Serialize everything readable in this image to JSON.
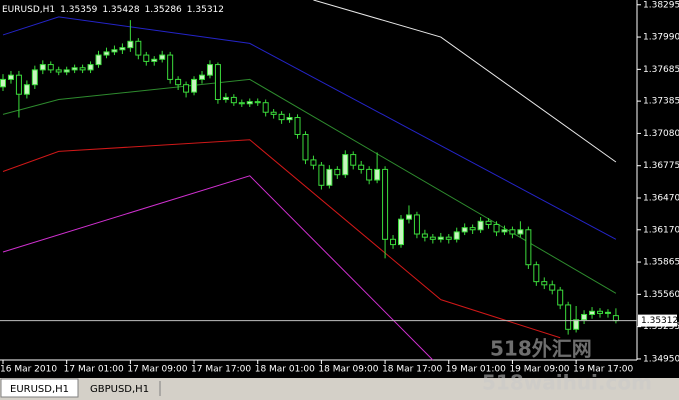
{
  "chart_data": {
    "type": "candlestick",
    "title": "EURUSD,H1",
    "categories": [
      "16 Mar 2010",
      null,
      null,
      null,
      null,
      null,
      null,
      null,
      "17 Mar 01:00",
      null,
      null,
      null,
      null,
      null,
      null,
      null,
      "17 Mar 09:00",
      null,
      null,
      null,
      null,
      null,
      null,
      null,
      "17 Mar 17:00",
      null,
      null,
      null,
      null,
      null,
      null,
      null,
      "18 Mar 01:00",
      null,
      null,
      null,
      null,
      null,
      null,
      null,
      "18 Mar 09:00",
      null,
      null,
      null,
      null,
      null,
      null,
      null,
      "18 Mar 17:00",
      null,
      null,
      null,
      null,
      null,
      null,
      null,
      "19 Mar 01:00",
      null,
      null,
      null,
      null,
      null,
      null,
      null,
      "19 Mar 09:00",
      null,
      null,
      null,
      null,
      null,
      null,
      null,
      "19 Mar 17:00",
      null,
      null,
      null,
      null,
      null
    ],
    "open": [
      1.3752,
      1.3759,
      1.3763,
      1.3745,
      1.3754,
      1.3768,
      1.3773,
      1.3768,
      1.3766,
      1.3768,
      1.377,
      1.3768,
      1.3773,
      1.3782,
      1.3785,
      1.3787,
      1.3789,
      1.3795,
      1.3782,
      1.3776,
      1.3778,
      1.3782,
      1.3759,
      1.3754,
      1.3747,
      1.3759,
      1.3763,
      1.3773,
      1.374,
      1.3742,
      1.3737,
      1.3736,
      1.3738,
      1.3737,
      1.3728,
      1.3726,
      1.3721,
      1.3723,
      1.3707,
      1.3683,
      1.3678,
      1.3659,
      1.3674,
      1.3669,
      1.3688,
      1.3678,
      1.3674,
      1.3664,
      1.3674,
      1.3608,
      1.3603,
      1.3627,
      1.3631,
      1.3613,
      1.361,
      1.3608,
      1.361,
      1.3608,
      1.3615,
      1.3619,
      1.3617,
      1.3625,
      1.3622,
      1.3615,
      1.3617,
      1.3613,
      1.3617,
      1.3584,
      1.3568,
      1.3565,
      1.356,
      1.3546,
      1.3523,
      1.3532,
      1.3537,
      1.354,
      1.3538,
      1.35359
    ],
    "high": [
      1.3764,
      1.3767,
      1.3767,
      1.3758,
      1.3772,
      1.3777,
      1.3776,
      1.3771,
      1.3771,
      1.3773,
      1.3773,
      1.3776,
      1.3786,
      1.3789,
      1.3791,
      1.3793,
      1.3815,
      1.3798,
      1.3785,
      1.3781,
      1.3786,
      1.3785,
      1.3762,
      1.3757,
      1.3762,
      1.3767,
      1.3777,
      1.3775,
      1.3746,
      1.3745,
      1.374,
      1.3741,
      1.3741,
      1.374,
      1.3731,
      1.3729,
      1.3727,
      1.3726,
      1.371,
      1.3687,
      1.3681,
      1.3678,
      1.3677,
      1.3692,
      1.3691,
      1.3682,
      1.3677,
      1.369,
      1.3677,
      1.3612,
      1.3631,
      1.364,
      1.3634,
      1.3617,
      1.3613,
      1.3614,
      1.3613,
      1.3619,
      1.3623,
      1.3622,
      1.3629,
      1.3628,
      1.3625,
      1.3621,
      1.362,
      1.3625,
      1.362,
      1.3587,
      1.3572,
      1.3569,
      1.3563,
      1.3549,
      1.3545,
      1.3541,
      1.3544,
      1.3543,
      1.3542,
      1.35428
    ],
    "low": [
      1.3748,
      1.3755,
      1.3723,
      1.3741,
      1.375,
      1.3764,
      1.3765,
      1.3763,
      1.3763,
      1.3765,
      1.3765,
      1.3765,
      1.377,
      1.3779,
      1.3782,
      1.3783,
      1.3785,
      1.3778,
      1.3772,
      1.3772,
      1.3775,
      1.3755,
      1.3749,
      1.3742,
      1.3744,
      1.3755,
      1.376,
      1.3736,
      1.3737,
      1.3734,
      1.3733,
      1.3733,
      1.3734,
      1.3724,
      1.3722,
      1.3717,
      1.3718,
      1.3703,
      1.3679,
      1.3674,
      1.3655,
      1.3656,
      1.3665,
      1.3666,
      1.3674,
      1.367,
      1.366,
      1.3661,
      1.359,
      1.3599,
      1.36,
      1.3623,
      1.3609,
      1.3606,
      1.3604,
      1.3605,
      1.3604,
      1.3605,
      1.3612,
      1.3613,
      1.3614,
      1.3618,
      1.3611,
      1.3612,
      1.3609,
      1.361,
      1.358,
      1.3564,
      1.3561,
      1.3556,
      1.3542,
      1.3518,
      1.352,
      1.3528,
      1.3533,
      1.3534,
      1.3534,
      1.35286
    ],
    "close": [
      1.3759,
      1.3763,
      1.3745,
      1.3754,
      1.3768,
      1.3773,
      1.3768,
      1.3766,
      1.3768,
      1.377,
      1.3768,
      1.3773,
      1.3782,
      1.3785,
      1.3787,
      1.3789,
      1.3795,
      1.3782,
      1.3776,
      1.3778,
      1.3782,
      1.3759,
      1.3754,
      1.3747,
      1.3759,
      1.3763,
      1.3773,
      1.374,
      1.3742,
      1.3737,
      1.3736,
      1.3738,
      1.3737,
      1.3728,
      1.3726,
      1.3721,
      1.3723,
      1.3707,
      1.3683,
      1.3678,
      1.3659,
      1.3674,
      1.3669,
      1.3688,
      1.3678,
      1.3674,
      1.3664,
      1.3674,
      1.3608,
      1.3603,
      1.3627,
      1.3631,
      1.3613,
      1.361,
      1.3608,
      1.361,
      1.3608,
      1.3615,
      1.3619,
      1.3617,
      1.3625,
      1.3622,
      1.3615,
      1.3617,
      1.3613,
      1.3617,
      1.3584,
      1.3568,
      1.3565,
      1.356,
      1.3546,
      1.3523,
      1.3532,
      1.3537,
      1.354,
      1.3538,
      1.3539,
      1.35312
    ],
    "up_color": "#c8f5c0",
    "down_color": "#000000",
    "wick_color": "#3cdc3c",
    "lines": [
      {
        "color": "#2424c8",
        "x": [
          0,
          7,
          31,
          77
        ],
        "values": [
          1.3801,
          1.3818,
          1.3793,
          1.3608
        ]
      },
      {
        "color": "#2e8b2e",
        "x": [
          0,
          7,
          31,
          77
        ],
        "values": [
          1.3726,
          1.374,
          1.3759,
          1.3557
        ]
      },
      {
        "color": "#d01818",
        "x": [
          0,
          7,
          31,
          55,
          70
        ],
        "values": [
          1.3672,
          1.3691,
          1.3702,
          1.3551,
          1.3515
        ]
      },
      {
        "color": "#d030d0",
        "x": [
          0,
          31,
          54
        ],
        "values": [
          1.3596,
          1.3668,
          1.3494
        ]
      },
      {
        "color": "#e8e8e8",
        "x": [
          39,
          55,
          77
        ],
        "values": [
          1.3834,
          1.3799,
          1.3681
        ]
      }
    ],
    "ylim": [
      1.3494,
      1.3834
    ],
    "yticks": [
      1.38295,
      {
        "value": 1.3799,
        "label": "1.37990"
      },
      1.37685,
      1.37385,
      {
        "value": 1.3708,
        "label": "1.37080"
      },
      1.36775,
      {
        "value": 1.3647,
        "label": "1.36470"
      },
      {
        "value": 1.3617,
        "label": "1.36170"
      },
      1.35865,
      {
        "value": 1.3556,
        "label": "1.35560"
      },
      1.35255,
      {
        "value": 1.3495,
        "label": "1.34950"
      }
    ]
  },
  "tabs": [
    "EURUSD,H1",
    "GBPUSD,H1"
  ],
  "watermark": [
    "518外汇网",
    "518waihui.com"
  ]
}
